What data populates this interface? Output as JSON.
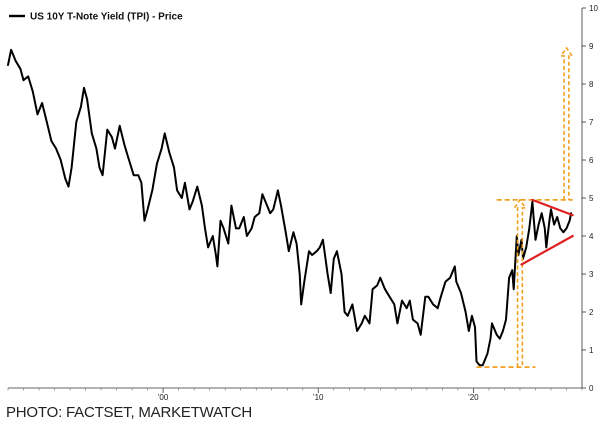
{
  "chart_data": {
    "type": "line",
    "legend": {
      "label": "US 10Y T-Note Yield (TPI) - Price",
      "position": "top-left",
      "color": "#000000"
    },
    "x_axis": {
      "range": [
        1990.0,
        2027.0
      ],
      "ticks": [
        {
          "value": 2000,
          "label": "'00"
        },
        {
          "value": 2010,
          "label": "'10"
        },
        {
          "value": 2020,
          "label": "'20"
        }
      ]
    },
    "y_axis": {
      "position": "right",
      "range": [
        0,
        10
      ],
      "ticks": [
        0,
        1,
        2,
        3,
        4,
        5,
        6,
        7,
        8,
        9,
        10
      ]
    },
    "grid": false,
    "series": [
      {
        "color": "#000000",
        "points": [
          [
            1990.0,
            8.5
          ],
          [
            1990.2,
            8.9
          ],
          [
            1990.5,
            8.6
          ],
          [
            1990.8,
            8.4
          ],
          [
            1991.0,
            8.1
          ],
          [
            1991.3,
            8.2
          ],
          [
            1991.6,
            7.8
          ],
          [
            1991.9,
            7.2
          ],
          [
            1992.2,
            7.5
          ],
          [
            1992.5,
            7.0
          ],
          [
            1992.8,
            6.5
          ],
          [
            1993.1,
            6.3
          ],
          [
            1993.4,
            6.0
          ],
          [
            1993.7,
            5.5
          ],
          [
            1993.9,
            5.3
          ],
          [
            1994.1,
            5.8
          ],
          [
            1994.4,
            7.0
          ],
          [
            1994.7,
            7.4
          ],
          [
            1994.9,
            7.9
          ],
          [
            1995.1,
            7.6
          ],
          [
            1995.4,
            6.7
          ],
          [
            1995.7,
            6.3
          ],
          [
            1995.9,
            5.8
          ],
          [
            1996.1,
            5.6
          ],
          [
            1996.4,
            6.8
          ],
          [
            1996.7,
            6.6
          ],
          [
            1996.9,
            6.3
          ],
          [
            1997.2,
            6.9
          ],
          [
            1997.5,
            6.4
          ],
          [
            1997.8,
            6.0
          ],
          [
            1998.1,
            5.6
          ],
          [
            1998.4,
            5.6
          ],
          [
            1998.6,
            5.4
          ],
          [
            1998.8,
            4.4
          ],
          [
            1999.0,
            4.7
          ],
          [
            1999.3,
            5.2
          ],
          [
            1999.6,
            5.9
          ],
          [
            1999.9,
            6.3
          ],
          [
            2000.1,
            6.7
          ],
          [
            2000.4,
            6.2
          ],
          [
            2000.7,
            5.8
          ],
          [
            2000.9,
            5.2
          ],
          [
            2001.2,
            5.0
          ],
          [
            2001.4,
            5.4
          ],
          [
            2001.7,
            4.7
          ],
          [
            2001.9,
            4.9
          ],
          [
            2002.2,
            5.3
          ],
          [
            2002.5,
            4.8
          ],
          [
            2002.7,
            4.2
          ],
          [
            2002.9,
            3.7
          ],
          [
            2003.2,
            4.0
          ],
          [
            2003.4,
            3.5
          ],
          [
            2003.5,
            3.2
          ],
          [
            2003.7,
            4.4
          ],
          [
            2003.9,
            4.2
          ],
          [
            2004.2,
            3.8
          ],
          [
            2004.4,
            4.8
          ],
          [
            2004.7,
            4.2
          ],
          [
            2004.9,
            4.2
          ],
          [
            2005.2,
            4.5
          ],
          [
            2005.4,
            4.0
          ],
          [
            2005.7,
            4.2
          ],
          [
            2005.9,
            4.5
          ],
          [
            2006.2,
            4.6
          ],
          [
            2006.4,
            5.1
          ],
          [
            2006.6,
            4.9
          ],
          [
            2006.9,
            4.6
          ],
          [
            2007.1,
            4.7
          ],
          [
            2007.4,
            5.2
          ],
          [
            2007.6,
            4.8
          ],
          [
            2007.9,
            4.1
          ],
          [
            2008.1,
            3.6
          ],
          [
            2008.4,
            4.1
          ],
          [
            2008.6,
            3.8
          ],
          [
            2008.8,
            3.0
          ],
          [
            2008.9,
            2.2
          ],
          [
            2009.1,
            2.8
          ],
          [
            2009.4,
            3.6
          ],
          [
            2009.6,
            3.5
          ],
          [
            2009.9,
            3.6
          ],
          [
            2010.1,
            3.7
          ],
          [
            2010.3,
            3.9
          ],
          [
            2010.6,
            3.0
          ],
          [
            2010.8,
            2.5
          ],
          [
            2011.0,
            3.4
          ],
          [
            2011.2,
            3.6
          ],
          [
            2011.5,
            3.0
          ],
          [
            2011.7,
            2.0
          ],
          [
            2011.9,
            1.9
          ],
          [
            2012.2,
            2.2
          ],
          [
            2012.5,
            1.5
          ],
          [
            2012.8,
            1.7
          ],
          [
            2013.0,
            1.9
          ],
          [
            2013.3,
            1.7
          ],
          [
            2013.5,
            2.6
          ],
          [
            2013.8,
            2.7
          ],
          [
            2014.0,
            2.9
          ],
          [
            2014.3,
            2.6
          ],
          [
            2014.6,
            2.4
          ],
          [
            2014.9,
            2.2
          ],
          [
            2015.1,
            1.7
          ],
          [
            2015.4,
            2.3
          ],
          [
            2015.7,
            2.1
          ],
          [
            2015.9,
            2.3
          ],
          [
            2016.1,
            1.8
          ],
          [
            2016.4,
            1.7
          ],
          [
            2016.6,
            1.4
          ],
          [
            2016.9,
            2.4
          ],
          [
            2017.1,
            2.4
          ],
          [
            2017.4,
            2.2
          ],
          [
            2017.7,
            2.1
          ],
          [
            2017.9,
            2.4
          ],
          [
            2018.2,
            2.8
          ],
          [
            2018.5,
            2.9
          ],
          [
            2018.8,
            3.2
          ],
          [
            2018.9,
            2.8
          ],
          [
            2019.2,
            2.5
          ],
          [
            2019.5,
            2.0
          ],
          [
            2019.7,
            1.5
          ],
          [
            2019.9,
            1.9
          ],
          [
            2020.1,
            1.6
          ],
          [
            2020.2,
            0.7
          ],
          [
            2020.4,
            0.6
          ],
          [
            2020.6,
            0.6
          ],
          [
            2020.9,
            0.9
          ],
          [
            2021.1,
            1.3
          ],
          [
            2021.2,
            1.7
          ],
          [
            2021.5,
            1.4
          ],
          [
            2021.7,
            1.3
          ],
          [
            2021.9,
            1.5
          ],
          [
            2022.1,
            1.8
          ],
          [
            2022.3,
            2.9
          ],
          [
            2022.5,
            3.1
          ],
          [
            2022.6,
            2.6
          ],
          [
            2022.8,
            4.0
          ],
          [
            2022.9,
            3.5
          ],
          [
            2023.1,
            3.9
          ],
          [
            2023.2,
            3.4
          ],
          [
            2023.4,
            3.7
          ],
          [
            2023.6,
            4.2
          ],
          [
            2023.8,
            4.9
          ],
          [
            2023.9,
            4.4
          ],
          [
            2024.0,
            3.9
          ],
          [
            2024.2,
            4.3
          ],
          [
            2024.4,
            4.6
          ],
          [
            2024.6,
            4.2
          ],
          [
            2024.7,
            3.7
          ],
          [
            2024.9,
            4.4
          ],
          [
            2025.0,
            4.7
          ],
          [
            2025.2,
            4.3
          ],
          [
            2025.4,
            4.5
          ],
          [
            2025.6,
            4.2
          ],
          [
            2025.8,
            4.1
          ],
          [
            2026.0,
            4.2
          ],
          [
            2026.2,
            4.4
          ],
          [
            2026.3,
            4.6
          ]
        ]
      }
    ],
    "annotations": {
      "resistance_line": {
        "color": "#e02020",
        "from": [
          2023.8,
          4.95
        ],
        "to": [
          2026.4,
          4.55
        ]
      },
      "support_line": {
        "color": "#e02020",
        "from": [
          2023.1,
          3.25
        ],
        "to": [
          2026.4,
          4.0
        ]
      },
      "range_top_level": {
        "color": "#f0a020",
        "y": 4.95,
        "x_from": 2021.5,
        "x_to": 2026.4
      },
      "range_bottom_level": {
        "color": "#f0a020",
        "y": 0.55,
        "x_from": 2020.2,
        "x_to": 2024.0
      },
      "measured_arrow_up": {
        "color": "#f0a020",
        "x": 2023.0,
        "from": 0.55,
        "to": 4.95
      },
      "target_arrow_up": {
        "color": "#f0a020",
        "x": 2026.0,
        "from": 4.95,
        "to": 8.95
      }
    }
  },
  "footer": {
    "credit": "PHOTO: FACTSET, MARKETWATCH"
  }
}
